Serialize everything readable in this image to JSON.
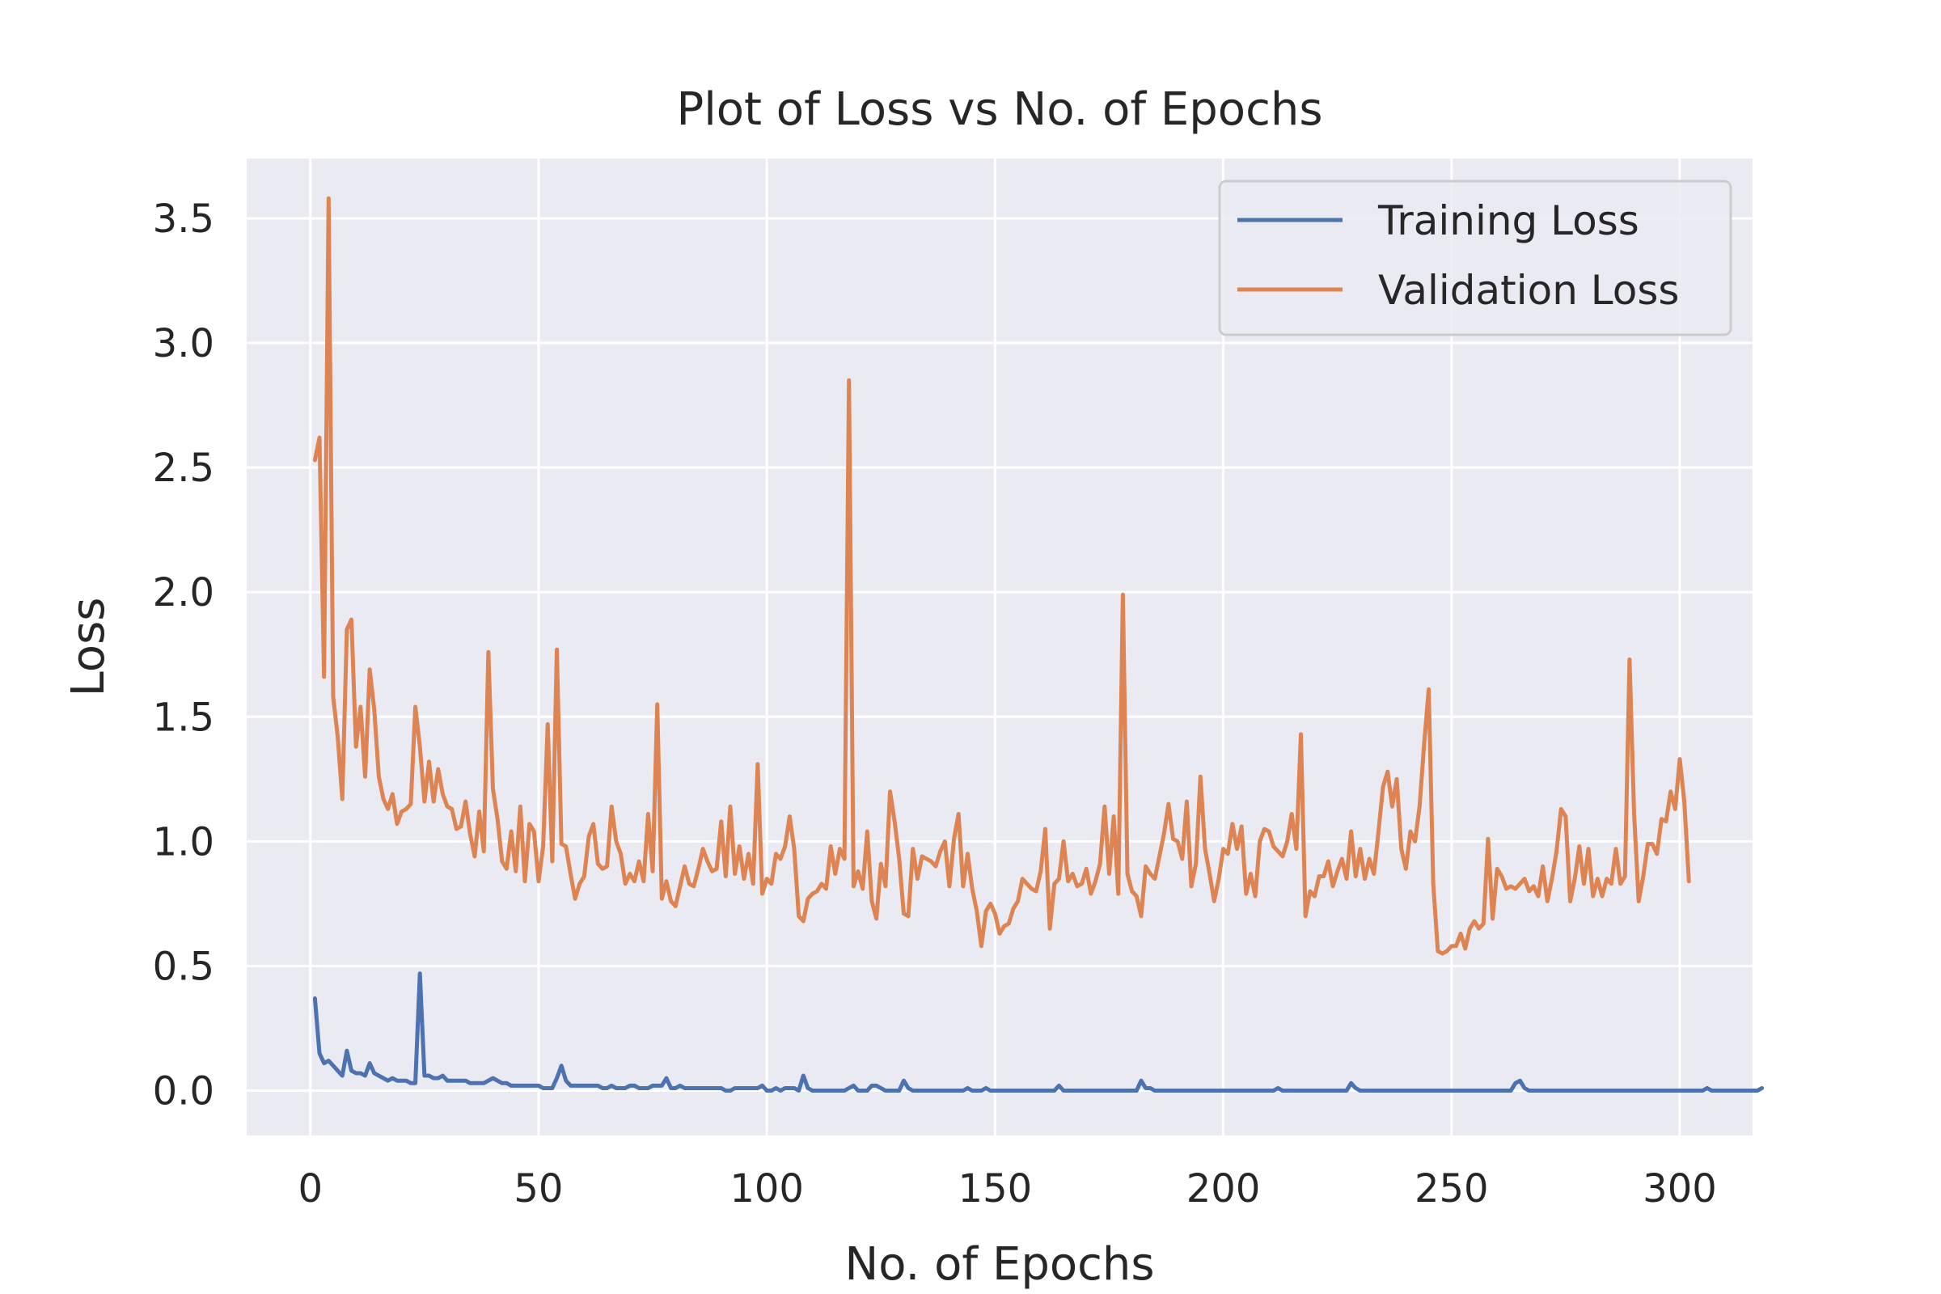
{
  "chart_data": {
    "type": "line",
    "title": "Plot of Loss vs No. of Epochs",
    "xlabel": "No. of Epochs",
    "ylabel": "Loss",
    "xlim": [
      -13.95,
      315.95
    ],
    "ylim": [
      -0.18,
      3.74
    ],
    "xticks": [
      0,
      50,
      100,
      150,
      200,
      250,
      300
    ],
    "yticks": [
      0.0,
      0.5,
      1.0,
      1.5,
      2.0,
      2.5,
      3.0,
      3.5
    ],
    "grid": true,
    "legend_position": "top-right",
    "background": "#eaeaf2",
    "x_start": 1,
    "series": [
      {
        "name": "Training Loss",
        "color": "#4c72b0",
        "values": [
          0.37,
          0.15,
          0.11,
          0.12,
          0.1,
          0.08,
          0.06,
          0.16,
          0.08,
          0.07,
          0.07,
          0.06,
          0.11,
          0.07,
          0.06,
          0.05,
          0.04,
          0.05,
          0.04,
          0.04,
          0.04,
          0.03,
          0.03,
          0.47,
          0.06,
          0.06,
          0.05,
          0.05,
          0.06,
          0.04,
          0.04,
          0.04,
          0.04,
          0.04,
          0.03,
          0.03,
          0.03,
          0.03,
          0.04,
          0.05,
          0.04,
          0.03,
          0.03,
          0.02,
          0.02,
          0.02,
          0.02,
          0.02,
          0.02,
          0.02,
          0.01,
          0.01,
          0.01,
          0.05,
          0.1,
          0.04,
          0.02,
          0.02,
          0.02,
          0.02,
          0.02,
          0.02,
          0.02,
          0.01,
          0.01,
          0.02,
          0.01,
          0.01,
          0.01,
          0.02,
          0.02,
          0.01,
          0.01,
          0.01,
          0.02,
          0.02,
          0.02,
          0.05,
          0.01,
          0.01,
          0.02,
          0.01,
          0.01,
          0.01,
          0.01,
          0.01,
          0.01,
          0.01,
          0.01,
          0.01,
          0.0,
          0.0,
          0.01,
          0.01,
          0.01,
          0.01,
          0.01,
          0.01,
          0.02,
          0.0,
          0.0,
          0.01,
          0.0,
          0.01,
          0.01,
          0.01,
          0.0,
          0.06,
          0.01,
          0.0,
          0.0,
          0.0,
          0.0,
          0.0,
          0.0,
          0.0,
          0.0,
          0.01,
          0.02,
          0.0,
          0.0,
          0.0,
          0.02,
          0.02,
          0.01,
          0.0,
          0.0,
          0.0,
          0.0,
          0.04,
          0.01,
          0.0,
          0.0,
          0.0,
          0.0,
          0.0,
          0.0,
          0.0,
          0.0,
          0.0,
          0.0,
          0.0,
          0.0,
          0.01,
          0.0,
          0.0,
          0.0,
          0.01,
          0.0,
          0.0,
          0.0,
          0.0,
          0.0,
          0.0,
          0.0,
          0.0,
          0.0,
          0.0,
          0.0,
          0.0,
          0.0,
          0.0,
          0.0,
          0.02,
          0.0,
          0.0,
          0.0,
          0.0,
          0.0,
          0.0,
          0.0,
          0.0,
          0.0,
          0.0,
          0.0,
          0.0,
          0.0,
          0.0,
          0.0,
          0.0,
          0.0,
          0.04,
          0.01,
          0.01,
          0.0,
          0.0,
          0.0,
          0.0,
          0.0,
          0.0,
          0.0,
          0.0,
          0.0,
          0.0,
          0.0,
          0.0,
          0.0,
          0.0,
          0.0,
          0.0,
          0.0,
          0.0,
          0.0,
          0.0,
          0.0,
          0.0,
          0.0,
          0.0,
          0.0,
          0.0,
          0.0,
          0.01,
          0.0,
          0.0,
          0.0,
          0.0,
          0.0,
          0.0,
          0.0,
          0.0,
          0.0,
          0.0,
          0.0,
          0.0,
          0.0,
          0.0,
          0.0,
          0.03,
          0.01,
          0.0,
          0.0,
          0.0,
          0.0,
          0.0,
          0.0,
          0.0,
          0.0,
          0.0,
          0.0,
          0.0,
          0.0,
          0.0,
          0.0,
          0.0,
          0.0,
          0.0,
          0.0,
          0.0,
          0.0,
          0.0,
          0.0,
          0.0,
          0.0,
          0.0,
          0.0,
          0.0,
          0.0,
          0.0,
          0.0,
          0.0,
          0.0,
          0.0,
          0.0,
          0.03,
          0.04,
          0.01,
          0.0,
          0.0,
          0.0,
          0.0,
          0.0,
          0.0,
          0.0,
          0.0,
          0.0,
          0.0,
          0.0,
          0.0,
          0.0,
          0.0,
          0.0,
          0.0,
          0.0,
          0.0,
          0.0,
          0.0,
          0.0,
          0.0,
          0.0,
          0.0,
          0.0,
          0.0,
          0.0,
          0.0,
          0.0,
          0.0,
          0.0,
          0.0,
          0.0,
          0.0,
          0.0,
          0.0,
          0.0,
          0.0,
          0.0,
          0.01,
          0.0,
          0.0,
          0.0,
          0.0,
          0.0,
          0.0,
          0.0,
          0.0,
          0.0,
          0.0,
          0.0,
          0.01
        ]
      },
      {
        "name": "Validation Loss",
        "color": "#dd8452",
        "values": [
          2.53,
          2.62,
          1.66,
          3.58,
          1.58,
          1.42,
          1.17,
          1.85,
          1.89,
          1.38,
          1.54,
          1.26,
          1.69,
          1.53,
          1.26,
          1.17,
          1.13,
          1.19,
          1.07,
          1.12,
          1.13,
          1.15,
          1.54,
          1.38,
          1.16,
          1.32,
          1.16,
          1.29,
          1.19,
          1.14,
          1.13,
          1.05,
          1.06,
          1.16,
          1.03,
          0.94,
          1.12,
          0.96,
          1.76,
          1.21,
          1.09,
          0.92,
          0.89,
          1.04,
          0.88,
          1.14,
          0.84,
          1.07,
          1.04,
          0.84,
          0.98,
          1.47,
          0.92,
          1.77,
          0.99,
          0.98,
          0.87,
          0.77,
          0.83,
          0.86,
          1.02,
          1.07,
          0.91,
          0.89,
          0.9,
          1.14,
          1.0,
          0.95,
          0.83,
          0.87,
          0.84,
          0.92,
          0.84,
          1.11,
          0.88,
          1.55,
          0.77,
          0.84,
          0.76,
          0.74,
          0.82,
          0.9,
          0.83,
          0.82,
          0.89,
          0.97,
          0.92,
          0.88,
          0.89,
          1.08,
          0.86,
          1.14,
          0.87,
          0.98,
          0.85,
          0.95,
          0.83,
          1.31,
          0.79,
          0.85,
          0.83,
          0.95,
          0.93,
          0.98,
          1.1,
          0.97,
          0.7,
          0.68,
          0.77,
          0.79,
          0.8,
          0.83,
          0.81,
          0.98,
          0.87,
          0.97,
          0.93,
          2.85,
          0.82,
          0.88,
          0.81,
          1.04,
          0.76,
          0.69,
          0.91,
          0.82,
          1.2,
          1.08,
          0.93,
          0.71,
          0.7,
          0.97,
          0.85,
          0.94,
          0.93,
          0.92,
          0.9,
          0.96,
          1.0,
          0.82,
          1.01,
          1.11,
          0.82,
          0.95,
          0.81,
          0.72,
          0.58,
          0.72,
          0.75,
          0.71,
          0.63,
          0.66,
          0.67,
          0.73,
          0.76,
          0.85,
          0.83,
          0.81,
          0.8,
          0.88,
          1.05,
          0.65,
          0.83,
          0.85,
          1.0,
          0.84,
          0.87,
          0.82,
          0.83,
          0.89,
          0.79,
          0.84,
          0.91,
          1.14,
          0.87,
          1.1,
          0.79,
          1.99,
          0.87,
          0.8,
          0.78,
          0.7,
          0.9,
          0.87,
          0.85,
          0.94,
          1.03,
          1.15,
          1.01,
          1.0,
          0.93,
          1.16,
          0.82,
          0.91,
          1.26,
          0.97,
          0.87,
          0.76,
          0.85,
          0.97,
          0.95,
          1.07,
          0.97,
          1.06,
          0.79,
          0.87,
          0.78,
          1.0,
          1.05,
          1.04,
          0.98,
          0.96,
          0.94,
          1.0,
          1.11,
          0.97,
          1.43,
          0.7,
          0.8,
          0.78,
          0.86,
          0.86,
          0.92,
          0.82,
          0.88,
          0.93,
          0.85,
          1.04,
          0.86,
          0.97,
          0.85,
          0.93,
          0.87,
          1.04,
          1.22,
          1.28,
          1.14,
          1.25,
          0.97,
          0.89,
          1.04,
          1.0,
          1.14,
          1.39,
          1.61,
          0.83,
          0.56,
          0.55,
          0.56,
          0.58,
          0.58,
          0.63,
          0.57,
          0.65,
          0.68,
          0.65,
          0.67,
          1.01,
          0.69,
          0.89,
          0.86,
          0.81,
          0.82,
          0.81,
          0.83,
          0.85,
          0.8,
          0.82,
          0.78,
          0.9,
          0.76,
          0.85,
          0.96,
          1.13,
          1.1,
          0.76,
          0.85,
          0.98,
          0.83,
          0.97,
          0.78,
          0.85,
          0.78,
          0.85,
          0.83,
          0.97,
          0.83,
          0.86,
          1.73,
          1.11,
          0.76,
          0.86,
          0.99,
          0.99,
          0.95,
          1.09,
          1.08,
          1.2,
          1.13,
          1.33,
          1.16,
          0.84
        ]
      }
    ]
  }
}
